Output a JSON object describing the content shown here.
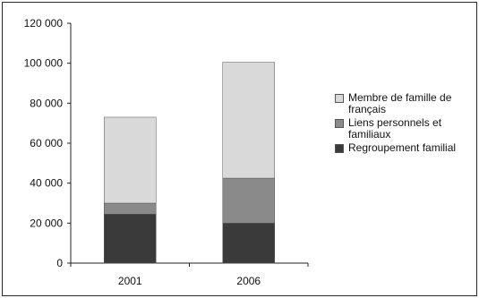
{
  "chart_data": {
    "type": "bar",
    "stacked": true,
    "categories": [
      "2001",
      "2006"
    ],
    "series": [
      {
        "name": "Regroupement familial",
        "values": [
          24500,
          20000
        ],
        "color": "#3a3a3a"
      },
      {
        "name": "Liens personnels et familiaux",
        "values": [
          5500,
          22500
        ],
        "color": "#8a8a8a"
      },
      {
        "name": "Membre de famille de français",
        "values": [
          43000,
          58000
        ],
        "color": "#d9d9d9"
      }
    ],
    "y_ticks": [
      "0",
      "20 000",
      "40 000",
      "60 000",
      "80 000",
      "100 000",
      "120 000"
    ],
    "ylim": [
      0,
      120000
    ],
    "grid": false,
    "legend_position": "right"
  },
  "legend": [
    {
      "label": "Membre de famille de français",
      "color": "#d9d9d9"
    },
    {
      "label": "Liens personnels et familiaux",
      "color": "#8a8a8a"
    },
    {
      "label": "Regroupement familial",
      "color": "#3a3a3a"
    }
  ]
}
